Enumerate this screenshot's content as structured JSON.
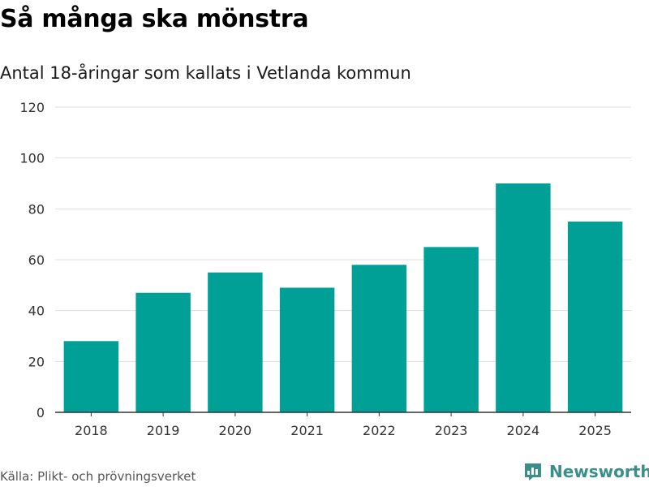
{
  "title": "Så många ska mönstra",
  "subtitle": "Antal 18-åringar som kallats i Vetlanda kommun",
  "source": "Källa: Plikt- och prövningsverket",
  "brand": {
    "name": "Newsworthy",
    "icon": "newsworthy-chart-bubble-icon",
    "color": "#3a8f8a"
  },
  "chart_data": {
    "type": "bar",
    "categories": [
      "2018",
      "2019",
      "2020",
      "2021",
      "2022",
      "2023",
      "2024",
      "2025"
    ],
    "values": [
      28,
      47,
      55,
      49,
      58,
      65,
      90,
      75
    ],
    "ylim": [
      0,
      120
    ],
    "yticks": [
      0,
      20,
      40,
      60,
      80,
      100,
      120
    ],
    "grid": true,
    "bar_color": "#00a096",
    "grid_color": "#dddddd"
  }
}
